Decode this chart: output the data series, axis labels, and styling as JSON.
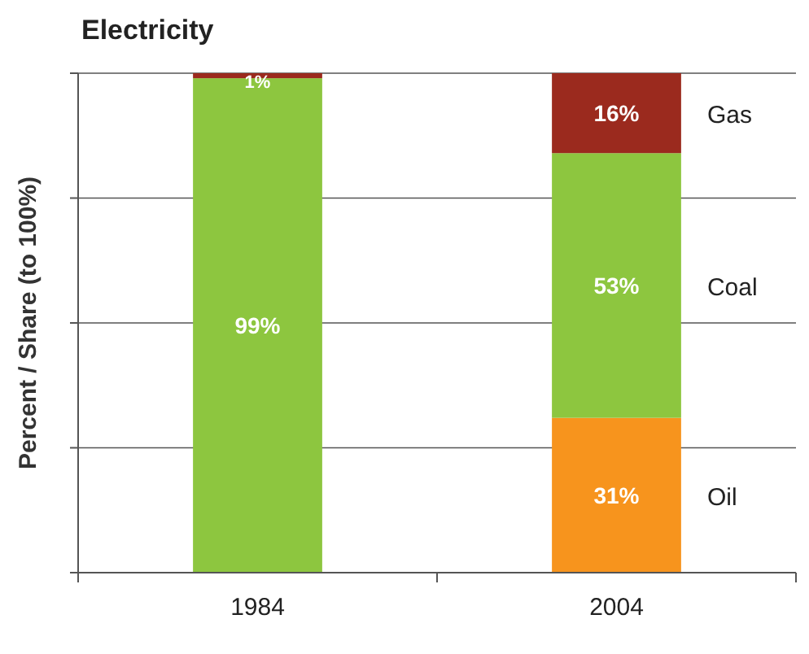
{
  "chart_data": {
    "type": "bar",
    "title": "Electricity",
    "ylabel": "Percent / Share (to 100%)",
    "categories": [
      "1984",
      "2004"
    ],
    "stacked": true,
    "ylim": [
      0,
      100
    ],
    "yticks": [
      {
        "value": 0,
        "label": null
      },
      {
        "value": 25,
        "label": null
      },
      {
        "value": 50,
        "label": null
      },
      {
        "value": 75,
        "label": null
      },
      {
        "value": 100,
        "label": null
      }
    ],
    "grid": "y",
    "tick_labels": "x",
    "series": [
      {
        "name": "Oil",
        "color": "#f7941d",
        "values": [
          0,
          31
        ],
        "value_labels": [
          null,
          "31%"
        ]
      },
      {
        "name": "Coal",
        "color": "#8dc63f",
        "values": [
          99,
          53
        ],
        "value_labels": [
          "99%",
          "53%"
        ]
      },
      {
        "name": "Gas",
        "color": "#9b2a1e",
        "values": [
          1,
          16
        ],
        "value_labels": [
          "1%",
          "16%"
        ]
      }
    ]
  }
}
